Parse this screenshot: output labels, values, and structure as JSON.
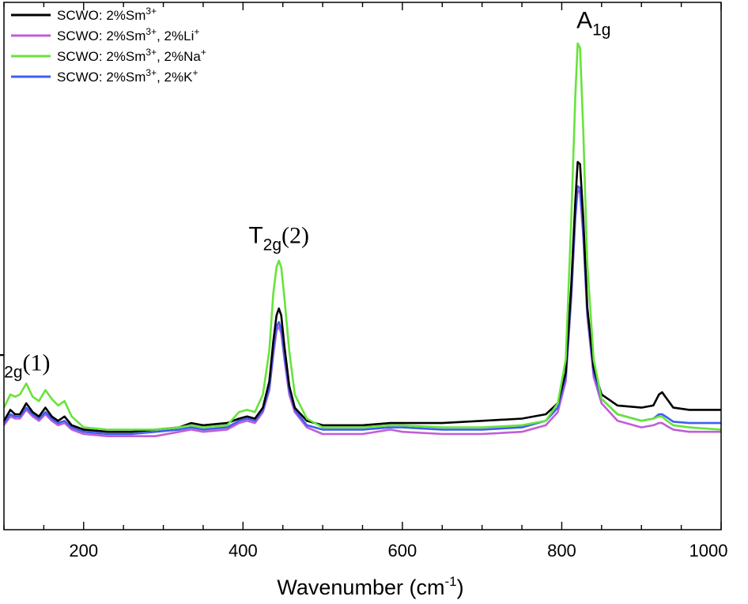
{
  "chart_data": {
    "type": "line",
    "title": "",
    "xlabel": "Wavenumber (cm",
    "xlabel_sup": "-1",
    "xlabel_end": ")",
    "ylabel": "",
    "xlim": [
      100,
      1000
    ],
    "ylim": [
      0,
      1
    ],
    "grid": false,
    "legend_position": "top-left",
    "x_ticks": [
      200,
      400,
      600,
      800,
      1000
    ],
    "x_tick_labels": [
      "200",
      "400",
      "600",
      "800",
      "1000"
    ],
    "series": [
      {
        "legend": {
          "base": "SCWO: 2%Sm",
          "sup1": "3+",
          "mid": "",
          "sup2": ""
        },
        "color": "#000000",
        "points": [
          [
            100,
            0.14
          ],
          [
            108,
            0.165
          ],
          [
            114,
            0.155
          ],
          [
            120,
            0.155
          ],
          [
            128,
            0.18
          ],
          [
            136,
            0.16
          ],
          [
            144,
            0.15
          ],
          [
            152,
            0.17
          ],
          [
            160,
            0.15
          ],
          [
            168,
            0.14
          ],
          [
            176,
            0.15
          ],
          [
            185,
            0.13
          ],
          [
            200,
            0.12
          ],
          [
            230,
            0.115
          ],
          [
            260,
            0.115
          ],
          [
            290,
            0.12
          ],
          [
            320,
            0.125
          ],
          [
            335,
            0.135
          ],
          [
            350,
            0.13
          ],
          [
            380,
            0.135
          ],
          [
            395,
            0.145
          ],
          [
            405,
            0.15
          ],
          [
            415,
            0.145
          ],
          [
            425,
            0.17
          ],
          [
            433,
            0.23
          ],
          [
            438,
            0.32
          ],
          [
            442,
            0.38
          ],
          [
            445,
            0.396
          ],
          [
            448,
            0.38
          ],
          [
            452,
            0.31
          ],
          [
            458,
            0.22
          ],
          [
            465,
            0.17
          ],
          [
            480,
            0.14
          ],
          [
            500,
            0.13
          ],
          [
            550,
            0.13
          ],
          [
            585,
            0.135
          ],
          [
            600,
            0.135
          ],
          [
            650,
            0.135
          ],
          [
            700,
            0.14
          ],
          [
            750,
            0.145
          ],
          [
            780,
            0.155
          ],
          [
            795,
            0.18
          ],
          [
            805,
            0.25
          ],
          [
            812,
            0.45
          ],
          [
            817,
            0.64
          ],
          [
            820,
            0.73
          ],
          [
            823,
            0.725
          ],
          [
            827,
            0.6
          ],
          [
            832,
            0.4
          ],
          [
            840,
            0.26
          ],
          [
            850,
            0.2
          ],
          [
            870,
            0.175
          ],
          [
            900,
            0.17
          ],
          [
            915,
            0.175
          ],
          [
            922,
            0.2
          ],
          [
            926,
            0.205
          ],
          [
            932,
            0.19
          ],
          [
            940,
            0.17
          ],
          [
            960,
            0.165
          ],
          [
            1000,
            0.165
          ]
        ]
      },
      {
        "legend": {
          "base": "SCWO: 2%Sm",
          "sup1": "3+",
          "mid": ", 2%Li",
          "sup2": "+"
        },
        "color": "#c05ed6",
        "points": [
          [
            100,
            0.13
          ],
          [
            108,
            0.15
          ],
          [
            114,
            0.145
          ],
          [
            120,
            0.145
          ],
          [
            128,
            0.165
          ],
          [
            136,
            0.15
          ],
          [
            144,
            0.14
          ],
          [
            152,
            0.155
          ],
          [
            160,
            0.14
          ],
          [
            168,
            0.13
          ],
          [
            176,
            0.135
          ],
          [
            185,
            0.12
          ],
          [
            200,
            0.11
          ],
          [
            230,
            0.105
          ],
          [
            260,
            0.105
          ],
          [
            290,
            0.105
          ],
          [
            320,
            0.115
          ],
          [
            335,
            0.12
          ],
          [
            350,
            0.115
          ],
          [
            380,
            0.12
          ],
          [
            395,
            0.135
          ],
          [
            405,
            0.14
          ],
          [
            415,
            0.135
          ],
          [
            425,
            0.16
          ],
          [
            433,
            0.21
          ],
          [
            438,
            0.29
          ],
          [
            442,
            0.345
          ],
          [
            445,
            0.355
          ],
          [
            448,
            0.34
          ],
          [
            452,
            0.28
          ],
          [
            458,
            0.2
          ],
          [
            465,
            0.16
          ],
          [
            480,
            0.125
          ],
          [
            500,
            0.11
          ],
          [
            550,
            0.11
          ],
          [
            585,
            0.12
          ],
          [
            600,
            0.115
          ],
          [
            650,
            0.11
          ],
          [
            700,
            0.11
          ],
          [
            750,
            0.115
          ],
          [
            780,
            0.13
          ],
          [
            795,
            0.16
          ],
          [
            805,
            0.23
          ],
          [
            812,
            0.42
          ],
          [
            817,
            0.6
          ],
          [
            820,
            0.665
          ],
          [
            823,
            0.66
          ],
          [
            827,
            0.56
          ],
          [
            832,
            0.38
          ],
          [
            840,
            0.24
          ],
          [
            850,
            0.18
          ],
          [
            870,
            0.14
          ],
          [
            900,
            0.125
          ],
          [
            915,
            0.13
          ],
          [
            922,
            0.135
          ],
          [
            926,
            0.135
          ],
          [
            932,
            0.128
          ],
          [
            940,
            0.12
          ],
          [
            960,
            0.115
          ],
          [
            1000,
            0.115
          ]
        ]
      },
      {
        "legend": {
          "base": "SCWO: 2%Sm",
          "sup1": "3+",
          "mid": ", 2%Na",
          "sup2": "+"
        },
        "color": "#66e43a",
        "points": [
          [
            100,
            0.17
          ],
          [
            108,
            0.2
          ],
          [
            114,
            0.195
          ],
          [
            120,
            0.2
          ],
          [
            128,
            0.225
          ],
          [
            136,
            0.195
          ],
          [
            144,
            0.185
          ],
          [
            152,
            0.21
          ],
          [
            160,
            0.19
          ],
          [
            168,
            0.175
          ],
          [
            176,
            0.185
          ],
          [
            185,
            0.15
          ],
          [
            200,
            0.125
          ],
          [
            230,
            0.12
          ],
          [
            260,
            0.12
          ],
          [
            290,
            0.12
          ],
          [
            320,
            0.125
          ],
          [
            335,
            0.13
          ],
          [
            350,
            0.125
          ],
          [
            380,
            0.13
          ],
          [
            395,
            0.16
          ],
          [
            405,
            0.165
          ],
          [
            415,
            0.16
          ],
          [
            425,
            0.2
          ],
          [
            433,
            0.3
          ],
          [
            438,
            0.43
          ],
          [
            442,
            0.49
          ],
          [
            445,
            0.505
          ],
          [
            448,
            0.49
          ],
          [
            452,
            0.42
          ],
          [
            458,
            0.3
          ],
          [
            465,
            0.2
          ],
          [
            480,
            0.145
          ],
          [
            500,
            0.125
          ],
          [
            550,
            0.125
          ],
          [
            585,
            0.13
          ],
          [
            600,
            0.13
          ],
          [
            650,
            0.125
          ],
          [
            700,
            0.125
          ],
          [
            750,
            0.13
          ],
          [
            780,
            0.14
          ],
          [
            795,
            0.18
          ],
          [
            805,
            0.28
          ],
          [
            812,
            0.6
          ],
          [
            817,
            0.88
          ],
          [
            820,
            1.0
          ],
          [
            823,
            0.99
          ],
          [
            827,
            0.8
          ],
          [
            832,
            0.5
          ],
          [
            840,
            0.28
          ],
          [
            850,
            0.19
          ],
          [
            870,
            0.155
          ],
          [
            900,
            0.14
          ],
          [
            915,
            0.145
          ],
          [
            922,
            0.15
          ],
          [
            926,
            0.15
          ],
          [
            932,
            0.14
          ],
          [
            940,
            0.13
          ],
          [
            960,
            0.125
          ],
          [
            1000,
            0.12
          ]
        ]
      },
      {
        "legend": {
          "base": "SCWO: 2%Sm",
          "sup1": "3+",
          "mid": ", 2%K",
          "sup2": "+"
        },
        "color": "#3f5ef0",
        "points": [
          [
            100,
            0.135
          ],
          [
            108,
            0.155
          ],
          [
            114,
            0.15
          ],
          [
            120,
            0.15
          ],
          [
            128,
            0.17
          ],
          [
            136,
            0.155
          ],
          [
            144,
            0.145
          ],
          [
            152,
            0.16
          ],
          [
            160,
            0.145
          ],
          [
            168,
            0.135
          ],
          [
            176,
            0.14
          ],
          [
            185,
            0.125
          ],
          [
            200,
            0.115
          ],
          [
            230,
            0.11
          ],
          [
            260,
            0.11
          ],
          [
            290,
            0.115
          ],
          [
            320,
            0.12
          ],
          [
            335,
            0.125
          ],
          [
            350,
            0.12
          ],
          [
            380,
            0.125
          ],
          [
            395,
            0.14
          ],
          [
            405,
            0.145
          ],
          [
            415,
            0.14
          ],
          [
            425,
            0.165
          ],
          [
            433,
            0.215
          ],
          [
            438,
            0.3
          ],
          [
            442,
            0.355
          ],
          [
            445,
            0.365
          ],
          [
            448,
            0.35
          ],
          [
            452,
            0.29
          ],
          [
            458,
            0.21
          ],
          [
            465,
            0.165
          ],
          [
            480,
            0.13
          ],
          [
            500,
            0.12
          ],
          [
            550,
            0.12
          ],
          [
            585,
            0.125
          ],
          [
            600,
            0.125
          ],
          [
            650,
            0.12
          ],
          [
            700,
            0.12
          ],
          [
            750,
            0.125
          ],
          [
            780,
            0.14
          ],
          [
            795,
            0.17
          ],
          [
            805,
            0.24
          ],
          [
            812,
            0.43
          ],
          [
            817,
            0.61
          ],
          [
            820,
            0.675
          ],
          [
            823,
            0.67
          ],
          [
            827,
            0.57
          ],
          [
            832,
            0.39
          ],
          [
            840,
            0.25
          ],
          [
            850,
            0.19
          ],
          [
            870,
            0.155
          ],
          [
            900,
            0.14
          ],
          [
            915,
            0.145
          ],
          [
            922,
            0.155
          ],
          [
            926,
            0.155
          ],
          [
            932,
            0.148
          ],
          [
            940,
            0.138
          ],
          [
            960,
            0.135
          ],
          [
            1000,
            0.135
          ]
        ]
      }
    ],
    "annotations": [
      {
        "main": "T",
        "sub": "2g",
        "suffix": "(1)",
        "x": 120,
        "y": 0.255
      },
      {
        "main": "T",
        "sub": "2g",
        "suffix": "(2)",
        "x": 445,
        "y": 0.545
      },
      {
        "main": "A",
        "sub": "1g",
        "suffix": "",
        "x": 840,
        "y": 1.035
      }
    ]
  }
}
